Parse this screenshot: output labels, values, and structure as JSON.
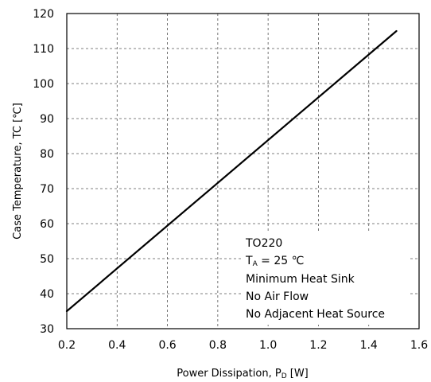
{
  "chart_data": {
    "type": "line",
    "xlabel": {
      "main": "Power Dissipation, P",
      "sub": "D",
      "unit": " [W]"
    },
    "ylabel": "Case Temperature, TC [℃]",
    "xlim": [
      0.2,
      1.6
    ],
    "ylim": [
      30,
      120
    ],
    "xticks": [
      0.2,
      0.4,
      0.6,
      0.8,
      1.0,
      1.2,
      1.4,
      1.6
    ],
    "xtick_labels": [
      "0.2",
      "0.4",
      "0.6",
      "0.8",
      "1.0",
      "1.2",
      "1.4",
      "1.6"
    ],
    "yticks": [
      30,
      40,
      50,
      60,
      70,
      80,
      90,
      100,
      110,
      120
    ],
    "ytick_labels": [
      "30",
      "40",
      "50",
      "60",
      "70",
      "80",
      "90",
      "100",
      "110",
      "120"
    ],
    "grid": true,
    "grid_style": "dashed",
    "series": [
      {
        "x": [
          0.2,
          1.51
        ],
        "y": [
          35,
          115
        ],
        "color": "#000000"
      }
    ],
    "annotations": [
      {
        "text": "TO220"
      },
      {
        "main": "T",
        "sub": "A",
        "rest": " = 25 ℃"
      },
      {
        "text": "Minimum Heat Sink"
      },
      {
        "text": "No Air Flow"
      },
      {
        "text": "No Adjacent Heat Source"
      }
    ]
  }
}
